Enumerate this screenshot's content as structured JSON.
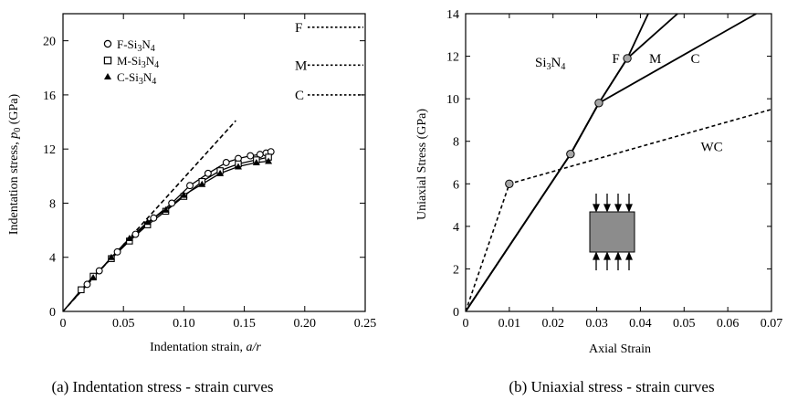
{
  "chart_data": [
    {
      "type": "scatter",
      "caption": "(a) Indentation stress - strain curves",
      "xlabel": "Indentation strain, a/r",
      "ylabel": "Indentation stress, p0 (GPa)",
      "xlim": [
        0,
        0.25
      ],
      "ylim": [
        0,
        22
      ],
      "xticks": [
        "0",
        "0.05",
        "0.10",
        "0.15",
        "0.20",
        "0.25"
      ],
      "yticks": [
        "0",
        "4",
        "8",
        "12",
        "16",
        "20"
      ],
      "legend_position": "top-left",
      "series": [
        {
          "name": "F-Si3N4",
          "marker": "circle-open",
          "x": [
            0.02,
            0.03,
            0.045,
            0.06,
            0.075,
            0.09,
            0.105,
            0.12,
            0.135,
            0.145,
            0.155,
            0.163,
            0.168,
            0.172
          ],
          "y": [
            2.0,
            3.0,
            4.4,
            5.7,
            6.9,
            8.0,
            9.3,
            10.2,
            11.0,
            11.3,
            11.5,
            11.6,
            11.7,
            11.8
          ]
        },
        {
          "name": "M-Si3N4",
          "marker": "square-open",
          "x": [
            0.015,
            0.025,
            0.04,
            0.055,
            0.07,
            0.085,
            0.1,
            0.115,
            0.13,
            0.145,
            0.16,
            0.17
          ],
          "y": [
            1.6,
            2.6,
            3.9,
            5.2,
            6.4,
            7.4,
            8.5,
            9.6,
            10.4,
            10.9,
            11.2,
            11.4
          ]
        },
        {
          "name": "C-Si3N4",
          "marker": "triangle-filled",
          "x": [
            0.025,
            0.04,
            0.055,
            0.07,
            0.085,
            0.1,
            0.115,
            0.13,
            0.145,
            0.16,
            0.17
          ],
          "y": [
            2.5,
            4.0,
            5.4,
            6.6,
            7.5,
            8.6,
            9.4,
            10.2,
            10.7,
            11.0,
            11.1
          ]
        }
      ],
      "elastic_line": {
        "x": [
          0,
          0.143
        ],
        "y": [
          0,
          14.1
        ],
        "style": "dashed"
      },
      "right_markers": [
        {
          "label": "F",
          "y": 21.0
        },
        {
          "label": "M",
          "y": 18.2
        },
        {
          "label": "C",
          "y": 16.0
        }
      ]
    },
    {
      "type": "line",
      "caption": "(b) Uniaxial stress - strain curves",
      "xlabel": "Axial Strain",
      "ylabel": "Uniaxial Stress (GPa)",
      "xlim": [
        0,
        0.07
      ],
      "ylim": [
        0,
        14
      ],
      "xticks": [
        "0",
        "0.01",
        "0.02",
        "0.03",
        "0.04",
        "0.05",
        "0.06",
        "0.07"
      ],
      "yticks": [
        "0",
        "2",
        "4",
        "6",
        "8",
        "10",
        "12",
        "14"
      ],
      "material_label": "Si3N4",
      "series": [
        {
          "name": "F",
          "style": "solid",
          "x": [
            0,
            0.024,
            0.0305,
            0.037,
            0.0418
          ],
          "y": [
            0,
            7.4,
            9.8,
            11.9,
            14
          ]
        },
        {
          "name": "M",
          "style": "solid",
          "x": [
            0,
            0.024,
            0.0305,
            0.037,
            0.0485
          ],
          "y": [
            0,
            7.4,
            9.8,
            11.9,
            14
          ]
        },
        {
          "name": "C",
          "style": "solid",
          "x": [
            0,
            0.024,
            0.0305,
            0.0665
          ],
          "y": [
            0,
            7.4,
            9.8,
            14
          ]
        },
        {
          "name": "WC",
          "style": "dashed",
          "x": [
            0,
            0.01,
            0.07
          ],
          "y": [
            0,
            6.0,
            9.5
          ]
        }
      ],
      "yield_points": [
        {
          "x": 0.01,
          "y": 6.0
        },
        {
          "x": 0.024,
          "y": 7.4
        },
        {
          "x": 0.0305,
          "y": 9.8
        },
        {
          "x": 0.037,
          "y": 11.9
        }
      ],
      "inset": "compression-specimen"
    }
  ]
}
